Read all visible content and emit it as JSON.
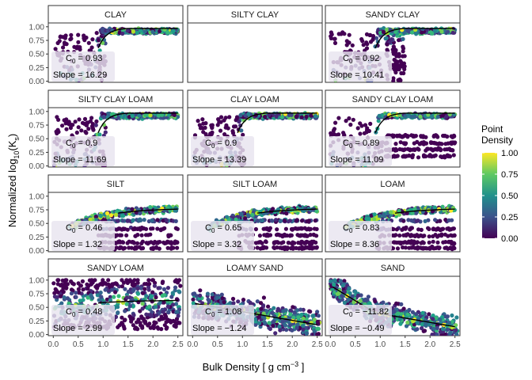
{
  "chart_data": {
    "type": "scatter",
    "xlabel_main": "Bulk Density [ g cm",
    "xlabel_sup": "−3",
    "xlabel_end": " ]",
    "ylabel_main": "Normalized  log",
    "ylabel_sub": "10",
    "ylabel_mid": "(K",
    "ylabel_sub2": "s",
    "ylabel_end": ")",
    "xlim": [
      -0.1,
      2.6
    ],
    "ylim": [
      -0.02,
      1.07
    ],
    "x_ticks": [
      "0.0",
      "0.5",
      "1.0",
      "1.5",
      "2.0",
      "2.5"
    ],
    "x_tick_values": [
      0,
      0.5,
      1.0,
      1.5,
      2.0,
      2.5
    ],
    "y_ticks": [
      "0.00",
      "0.25",
      "0.50",
      "0.75",
      "1.00"
    ],
    "y_tick_values": [
      0,
      0.25,
      0.5,
      0.75,
      1.0
    ],
    "legend": {
      "title_line1": "Point",
      "title_line2": "Density",
      "labels": [
        "1.00",
        "0.75",
        "0.50",
        "0.25",
        "0.00"
      ],
      "position": "right"
    },
    "colors": {
      "viridis": [
        "#440154",
        "#482878",
        "#3e4a89",
        "#31688e",
        "#26828e",
        "#1f9e89",
        "#35b779",
        "#6ece58",
        "#b5de2b",
        "#fde725"
      ],
      "fit_line": "#000000",
      "strip_fill": "#ffffff",
      "panel_border": "#333333",
      "label_box": "#e8e4ef"
    },
    "panels": [
      {
        "title": "CLAY",
        "c0_label": "C",
        "c0_sub": "0",
        "c0_text": " = 0.93",
        "slope_text": "Slope = 16.29",
        "c0": 0.93,
        "slope": 16.29,
        "has_data": true,
        "pattern": "rising"
      },
      {
        "title": "SILTY CLAY",
        "c0_label": "",
        "c0_sub": "",
        "c0_text": "",
        "slope_text": "",
        "has_data": false,
        "pattern": "none"
      },
      {
        "title": "SANDY CLAY",
        "c0_label": "C",
        "c0_sub": "0",
        "c0_text": " = 0.92",
        "slope_text": "Slope = 10.41",
        "c0": 0.92,
        "slope": 10.41,
        "has_data": true,
        "pattern": "rising_scatter"
      },
      {
        "title": "SILTY CLAY LOAM",
        "c0_label": "C",
        "c0_sub": "0",
        "c0_text": " = 0.9",
        "slope_text": "Slope = 11.69",
        "c0": 0.9,
        "slope": 11.69,
        "has_data": true,
        "pattern": "rising"
      },
      {
        "title": "CLAY LOAM",
        "c0_label": "C",
        "c0_sub": "0",
        "c0_text": " = 0.9",
        "slope_text": "Slope = 13.39",
        "c0": 0.9,
        "slope": 13.39,
        "has_data": true,
        "pattern": "rising"
      },
      {
        "title": "SANDY CLAY LOAM",
        "c0_label": "C",
        "c0_sub": "0",
        "c0_text": " = 0.89",
        "slope_text": "Slope = 11.09",
        "c0": 0.89,
        "slope": 11.09,
        "has_data": true,
        "pattern": "rising_bands"
      },
      {
        "title": "SILT",
        "c0_label": "C",
        "c0_sub": "0",
        "c0_text": " = 0.46",
        "slope_text": "Slope = 1.32",
        "c0": 0.46,
        "slope": 1.32,
        "has_data": true,
        "pattern": "mid_bands"
      },
      {
        "title": "SILT LOAM",
        "c0_label": "C",
        "c0_sub": "0",
        "c0_text": " = 0.65",
        "slope_text": "Slope = 3.32",
        "c0": 0.65,
        "slope": 3.32,
        "has_data": true,
        "pattern": "mid_bands"
      },
      {
        "title": "LOAM",
        "c0_label": "C",
        "c0_sub": "0",
        "c0_text": " = 0.83",
        "slope_text": "Slope = 8.36",
        "c0": 0.83,
        "slope": 8.36,
        "has_data": true,
        "pattern": "mid_bands"
      },
      {
        "title": "SANDY LOAM",
        "c0_label": "C",
        "c0_sub": "0",
        "c0_text": " = 0.48",
        "slope_text": "Slope = 2.99",
        "c0": 0.48,
        "slope": 2.99,
        "has_data": true,
        "pattern": "flat_full"
      },
      {
        "title": "LOAMY SAND",
        "c0_label": "C",
        "c0_sub": "0",
        "c0_text": " = 1.08",
        "slope_text": "Slope = −1.24",
        "c0": 1.08,
        "slope": -1.24,
        "has_data": true,
        "pattern": "falling"
      },
      {
        "title": "SAND",
        "c0_label": "C",
        "c0_sub": "0",
        "c0_text": " = −11.82",
        "slope_text": "Slope = −0.49",
        "c0": -11.82,
        "slope": -0.49,
        "has_data": true,
        "pattern": "falling_steep"
      }
    ]
  }
}
